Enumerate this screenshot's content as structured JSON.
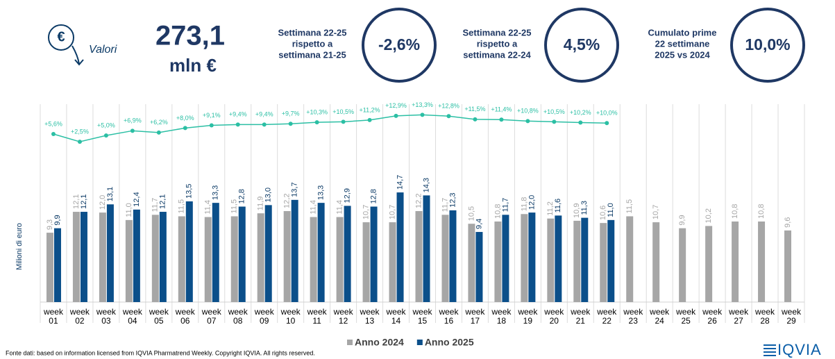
{
  "header": {
    "icon_symbol": "€",
    "total_label": "Valori",
    "total_value": "273,1",
    "total_unit": "mln €",
    "kpis": [
      {
        "label_lines": [
          "Settimana 22-25",
          "rispetto a",
          "settimana 21-25"
        ],
        "value": "-2,6%"
      },
      {
        "label_lines": [
          "Settimana 22-25",
          "rispetto a",
          "settimana 22-24"
        ],
        "value": "4,5%"
      },
      {
        "label_lines": [
          "Cumulato prime",
          "22 settimane",
          "2025 vs 2024"
        ],
        "value": "10,0%"
      }
    ]
  },
  "chart_data": {
    "type": "bar",
    "ylabel": "Milioni di euro",
    "ylim": [
      0,
      27
    ],
    "y2lim": [
      -62,
      19
    ],
    "legend": "bottom",
    "categories": [
      "week 01",
      "week 02",
      "week 03",
      "week 04",
      "week 05",
      "week 06",
      "week 07",
      "week 08",
      "week 09",
      "week 10",
      "week 11",
      "week 12",
      "week 13",
      "week 14",
      "week 15",
      "week 16",
      "week 17",
      "week 18",
      "week 19",
      "week 20",
      "week 21",
      "week 22",
      "week 23",
      "week 24",
      "week 25",
      "week 26",
      "week 27",
      "week 28",
      "week 29"
    ],
    "series": [
      {
        "name": "Anno 2024",
        "color": "#a6a6a6",
        "label_color": "#a6a6a6",
        "values": [
          9.3,
          12.1,
          12.0,
          11.0,
          11.7,
          11.5,
          11.4,
          11.5,
          11.9,
          12.2,
          11.4,
          11.4,
          10.7,
          10.7,
          12.2,
          11.7,
          10.5,
          10.8,
          11.8,
          11.2,
          10.9,
          10.6,
          11.5,
          10.7,
          9.9,
          10.2,
          10.8,
          10.8,
          9.6
        ],
        "value_labels": [
          "9,3",
          "12,1",
          "12,0",
          "11,0",
          "11,7",
          "11,5",
          "11,4",
          "11,5",
          "11,9",
          "12,2",
          "11,4",
          "11,4",
          "10,7",
          "10,7",
          "12,2",
          "11,7",
          "10,5",
          "10,8",
          "11,8",
          "11,2",
          "10,9",
          "10,6",
          "11,5",
          "10,7",
          "9,9",
          "10,2",
          "10,8",
          "10,8",
          "9,6"
        ]
      },
      {
        "name": "Anno 2025",
        "color": "#0b4f8a",
        "label_color": "#0b3a66",
        "values": [
          9.9,
          12.1,
          13.1,
          12.4,
          12.1,
          13.5,
          13.3,
          12.8,
          13.0,
          13.7,
          13.3,
          12.9,
          12.8,
          14.7,
          14.3,
          12.3,
          9.4,
          11.7,
          12.0,
          11.6,
          11.3,
          11.0,
          null,
          null,
          null,
          null,
          null,
          null,
          null
        ],
        "value_labels": [
          "9,9",
          "12,1",
          "13,1",
          "12,4",
          "12,1",
          "13,5",
          "13,3",
          "12,8",
          "13,0",
          "13,7",
          "13,3",
          "12,9",
          "12,8",
          "14,7",
          "14,3",
          "12,3",
          "9,4",
          "11,7",
          "12,0",
          "11,6",
          "11,3",
          "11,0",
          null,
          null,
          null,
          null,
          null,
          null,
          null
        ]
      },
      {
        "type": "line",
        "axis": "y2",
        "color": "#2bbfa4",
        "values": [
          5.6,
          2.5,
          5.0,
          6.9,
          6.2,
          8.0,
          9.1,
          9.4,
          9.4,
          9.7,
          10.3,
          10.5,
          11.2,
          12.9,
          13.3,
          12.8,
          11.5,
          11.4,
          10.8,
          10.5,
          10.2,
          10.0,
          null,
          null,
          null,
          null,
          null,
          null,
          null
        ],
        "value_labels": [
          "+5,6%",
          "+2,5%",
          "+5,0%",
          "+6,9%",
          "+6,2%",
          "+8,0%",
          "+9,1%",
          "+9,4%",
          "+9,4%",
          "+9,7%",
          "+10,3%",
          "+10,5%",
          "+11,2%",
          "+12,9%",
          "+13,3%",
          "+12,8%",
          "+11,5%",
          "+11,4%",
          "+10,8%",
          "+10,5%",
          "+10,2%",
          "+10,0%",
          null,
          null,
          null,
          null,
          null,
          null,
          null
        ]
      }
    ]
  },
  "footer": {
    "source": "Fonte dati: based on information licensed from IQVIA Pharmatrend Weekly. Copyright IQVIA. All rights reserved.",
    "logo": "IQVIA"
  }
}
